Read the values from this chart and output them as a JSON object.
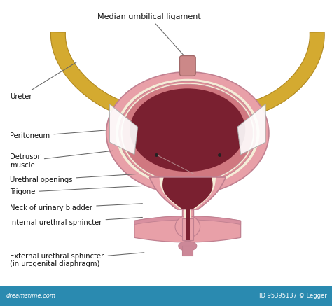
{
  "bg_color": "#ffffff",
  "bottom_bar_color": "#2a8ab0",
  "bottom_bar_text_left": "dreamstime.com",
  "bottom_bar_text_right": "ID 95395137 © Legger",
  "title": "Median umbilical ligament",
  "bladder_outer_color": "#e8a0a8",
  "bladder_outer_edge": "#c08090",
  "bladder_inner_color": "#e09098",
  "bladder_inner2_color": "#d07880",
  "bladder_cavity_color": "#7a2030",
  "wall_cream_color": "#f5edd8",
  "ureter_color": "#d4aa30",
  "ureter_edge": "#b08820",
  "ureter_dark": "#c09820",
  "sphincter_color": "#e8a0a8",
  "sphincter_edge": "#c08090",
  "neck_pink": "#e09098",
  "ligament_color": "#cc8888",
  "label_fontsize": 7.2,
  "title_fontsize": 8.0,
  "line_color": "#666666"
}
